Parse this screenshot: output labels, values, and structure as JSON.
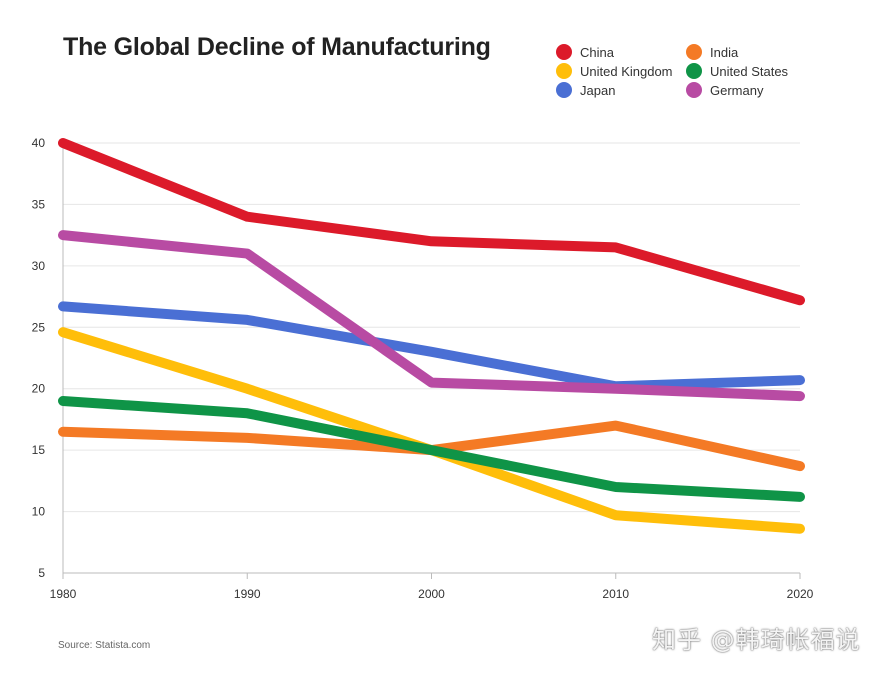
{
  "chart_data": {
    "type": "line",
    "title": "The Global Decline of Manufacturing",
    "x": [
      1980,
      1990,
      2000,
      2010,
      2020
    ],
    "xlim": [
      1980,
      2020
    ],
    "ylim": [
      5,
      40
    ],
    "yticks": [
      5,
      10,
      15,
      20,
      25,
      30,
      35,
      40
    ],
    "xticks": [
      1980,
      1990,
      2000,
      2010,
      2020
    ],
    "grid": true,
    "legend_position": "top-right",
    "series": [
      {
        "name": "China",
        "color": "#dc1a2a",
        "values": [
          40,
          34,
          32,
          31.5,
          27.2
        ]
      },
      {
        "name": "India",
        "color": "#f47a25",
        "values": [
          16.5,
          16,
          15,
          17,
          13.7
        ]
      },
      {
        "name": "United Kingdom",
        "color": "#ffbe0a",
        "values": [
          24.6,
          20,
          15,
          9.7,
          8.6
        ]
      },
      {
        "name": "United States",
        "color": "#0f9447",
        "values": [
          19,
          18,
          15,
          12,
          11.2
        ]
      },
      {
        "name": "Japan",
        "color": "#4a6fd4",
        "values": [
          26.7,
          25.6,
          23,
          20.2,
          20.7
        ]
      },
      {
        "name": "Germany",
        "color": "#b84ba3",
        "values": [
          32.5,
          31,
          20.5,
          20,
          19.4
        ]
      }
    ]
  },
  "source": "Source: Statista.com",
  "watermark": "知乎 @韩琦帐福说",
  "colors": {
    "grid": "#e6e6e6",
    "axis": "#bbbbbb"
  }
}
